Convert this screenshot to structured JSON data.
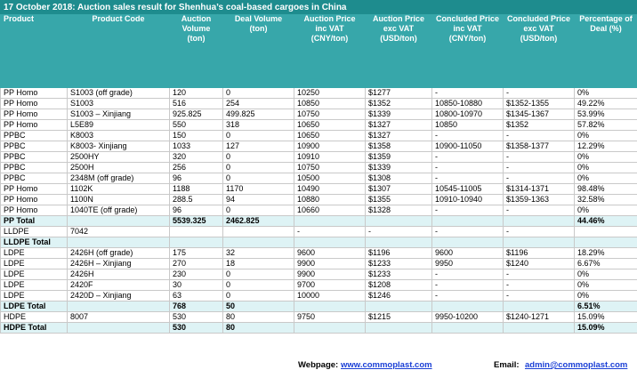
{
  "title": "17 October 2018: Auction sales result for Shenhua’s coal-based cargoes in China",
  "table": {
    "headers": [
      "Product",
      "Product Code",
      "Auction Volume (ton)",
      "Deal Volume (ton)",
      "Auction Price inc VAT (CNY/ton)",
      "Auction Price exc VAT (USD/ton)",
      "Concluded Price inc VAT (CNY/ton)",
      "Concluded Price exc VAT (USD/ton)",
      "Percentage of Deal (%)"
    ],
    "rows": [
      [
        "PP Homo",
        "S1003 (off grade)",
        "120",
        "0",
        "10250",
        "$1277",
        "-",
        "-",
        "0%"
      ],
      [
        "PP Homo",
        "S1003",
        "516",
        "254",
        "10850",
        "$1352",
        "10850-10880",
        "$1352-1355",
        "49.22%"
      ],
      [
        "PP Homo",
        "S1003 – Xinjiang",
        "925.825",
        "499.825",
        "10750",
        "$1339",
        "10800-10970",
        "$1345-1367",
        "53.99%"
      ],
      [
        "PP Homo",
        "L5E89",
        "550",
        "318",
        "10650",
        "$1327",
        "10850",
        "$1352",
        "57.82%"
      ],
      [
        "PPBC",
        "K8003",
        "150",
        "0",
        "10650",
        "$1327",
        "-",
        "-",
        "0%"
      ],
      [
        "PPBC",
        "K8003- Xinjiang",
        "1033",
        "127",
        "10900",
        "$1358",
        "10900-11050",
        "$1358-1377",
        "12.29%"
      ],
      [
        "PPBC",
        "2500HY",
        "320",
        "0",
        "10910",
        "$1359",
        "-",
        "-",
        "0%"
      ],
      [
        "PPBC",
        "2500H",
        "256",
        "0",
        "10750",
        "$1339",
        "-",
        "-",
        "0%"
      ],
      [
        "PPBC",
        "2348M (off grade)",
        "96",
        "0",
        "10500",
        "$1308",
        "-",
        "-",
        "0%"
      ],
      [
        "PP Homo",
        "1102K",
        "1188",
        "1170",
        "10490",
        "$1307",
        "10545-11005",
        "$1314-1371",
        "98.48%"
      ],
      [
        "PP Homo",
        "1100N",
        "288.5",
        "94",
        "10880",
        "$1355",
        "10910-10940",
        "$1359-1363",
        "32.58%"
      ],
      [
        "PP Homo",
        "1040TE (off grade)",
        "96",
        "0",
        "10660",
        "$1328",
        "-",
        "-",
        "0%"
      ],
      [
        "PP Total",
        null,
        "5539.325",
        "2462.825",
        null,
        null,
        null,
        null,
        "44.46%"
      ],
      [
        "LLDPE",
        "7042",
        null,
        null,
        "-",
        "-",
        "-",
        "-",
        null
      ],
      [
        "LLDPE Total",
        null,
        null,
        null,
        null,
        null,
        null,
        null,
        null
      ],
      [
        "LDPE",
        "2426H (off grade)",
        "175",
        "32",
        "9600",
        "$1196",
        "9600",
        "$1196",
        "18.29%"
      ],
      [
        "LDPE",
        "2426H – Xinjiang",
        "270",
        "18",
        "9900",
        "$1233",
        "9950",
        "$1240",
        "6.67%"
      ],
      [
        "LDPE",
        "2426H",
        "230",
        "0",
        "9900",
        "$1233",
        "-",
        "-",
        "0%"
      ],
      [
        "LDPE",
        "2420F",
        "30",
        "0",
        "9700",
        "$1208",
        "-",
        "-",
        "0%"
      ],
      [
        "LDPE",
        "2420D – Xinjiang",
        "63",
        "0",
        "10000",
        "$1246",
        "-",
        "-",
        "0%"
      ],
      [
        "LDPE Total",
        null,
        "768",
        "50",
        null,
        null,
        null,
        null,
        "6.51%"
      ],
      [
        "HDPE",
        "8007",
        "530",
        "80",
        "9750",
        "$1215",
        "9950-10200",
        "$1240-1271",
        "15.09%"
      ],
      [
        "HDPE Total",
        null,
        "530",
        "80",
        null,
        null,
        null,
        null,
        "15.09%"
      ]
    ],
    "total_rows": [
      12,
      14,
      20,
      22
    ]
  },
  "footer": {
    "webpage_label": "Webpage:",
    "webpage": "www.commoplast.com",
    "email_label": "Email:",
    "email": "admin@commoplast.com"
  }
}
